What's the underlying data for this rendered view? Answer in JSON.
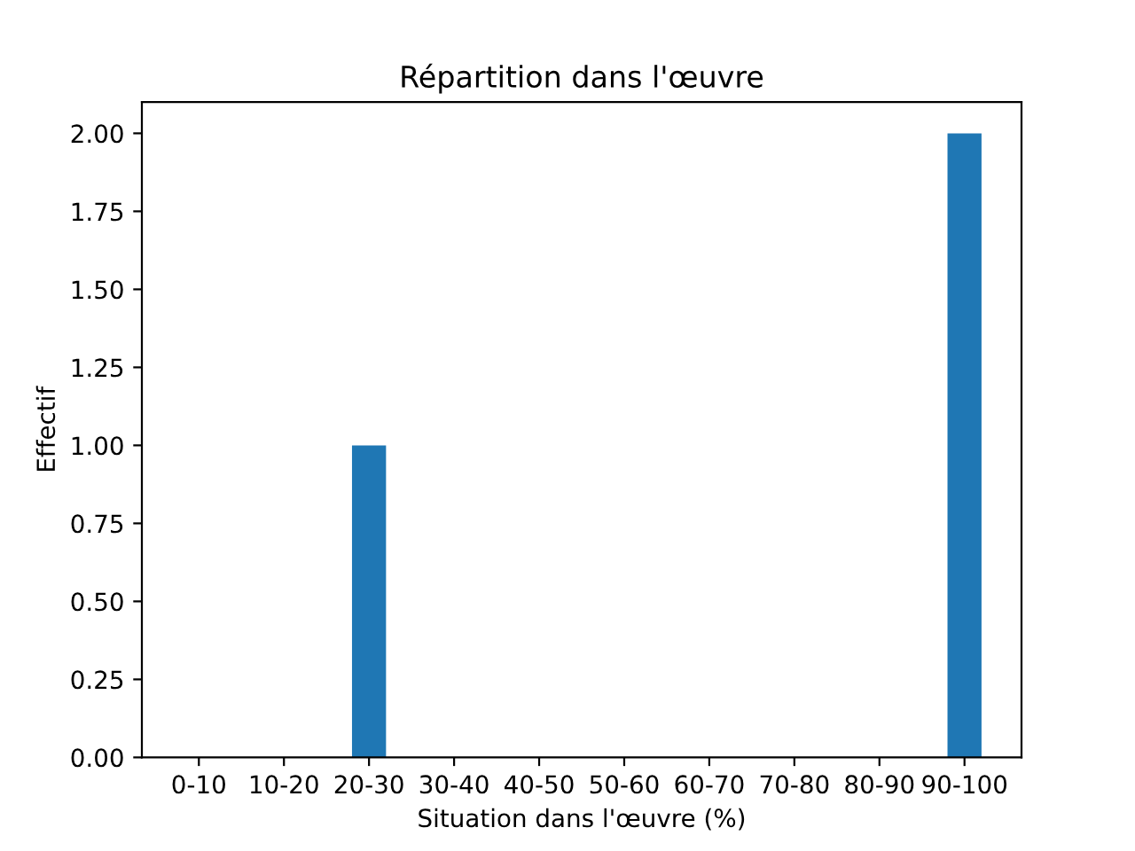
{
  "chart_data": {
    "type": "bar",
    "title": "Répartition dans l'œuvre",
    "xlabel": "Situation dans l'œuvre (%)",
    "ylabel": "Effectif",
    "categories": [
      "0-10",
      "10-20",
      "20-30",
      "30-40",
      "40-50",
      "50-60",
      "60-70",
      "70-80",
      "80-90",
      "90-100"
    ],
    "values": [
      0,
      0,
      1,
      0,
      0,
      0,
      0,
      0,
      0,
      2
    ],
    "color": "#1f77b4",
    "ylim": [
      0,
      2.1
    ],
    "yticks": [
      {
        "value": 0,
        "label": "0.00"
      },
      {
        "value": 0.25,
        "label": "0.25"
      },
      {
        "value": 0.5,
        "label": "0.50"
      },
      {
        "value": 0.75,
        "label": "0.75"
      },
      {
        "value": 1,
        "label": "1.00"
      },
      {
        "value": 1.25,
        "label": "1.25"
      },
      {
        "value": 1.5,
        "label": "1.50"
      },
      {
        "value": 1.75,
        "label": "1.75"
      },
      {
        "value": 2,
        "label": "2.00"
      }
    ],
    "grid": false,
    "legend": false
  }
}
